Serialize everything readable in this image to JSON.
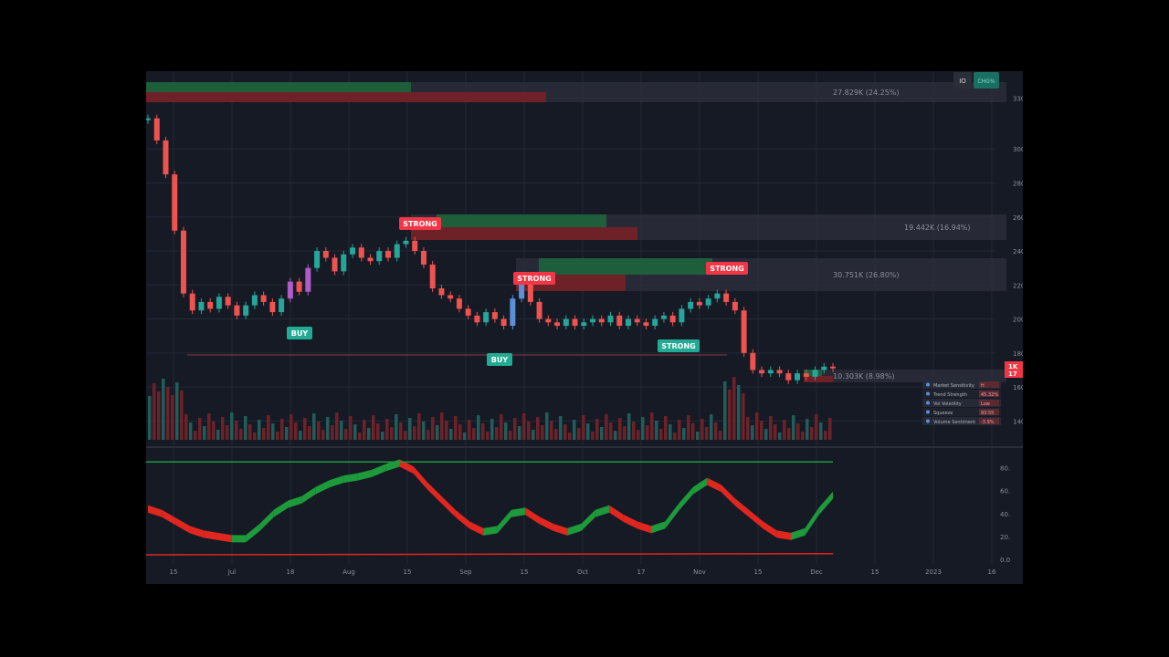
{
  "toolbar": {
    "interval_label": "IO",
    "status_label": "CHG%"
  },
  "price_axis_labels": [
    "330",
    "300",
    "280",
    "260",
    "240",
    "220",
    "200",
    "180",
    "160",
    "140"
  ],
  "last_price_labels": [
    "1K",
    "17"
  ],
  "osc_axis_labels": [
    "80.",
    "60.",
    "40.",
    "20.",
    "0.0"
  ],
  "colors": {
    "up": "#22ab94",
    "down": "#f23645",
    "bg": "#161a25",
    "grid": "#232838",
    "green_candle": "#26a69a",
    "red_candle": "#ef5350",
    "blue_candle": "#5b8fd9",
    "purple_candle": "#b05cc8"
  },
  "volume_profile": [
    {
      "label": "27.829K (24.25%)"
    },
    {
      "label": "19.442K (16.94%)"
    },
    {
      "label": "30.751K (26.80%)"
    },
    {
      "label": "10.303K (8.98%)"
    }
  ],
  "signals": [
    {
      "label": "BUY",
      "color": "#22ab94"
    },
    {
      "label": "STRONG",
      "color": "#f23645"
    },
    {
      "label": "BUY",
      "color": "#22ab94"
    },
    {
      "label": "STRONG",
      "color": "#f23645"
    },
    {
      "label": "STRONG",
      "color": "#22ab94"
    },
    {
      "label": "STRONG",
      "color": "#f23645"
    }
  ],
  "dashboard": [
    {
      "label": "Market Sensitivity",
      "value": "H",
      "icon": "gauge-icon"
    },
    {
      "label": "Trend Strength",
      "value": "45.32%",
      "icon": "trend-icon"
    },
    {
      "label": "Vol Volatility",
      "value": "Low",
      "icon": "volatility-icon"
    },
    {
      "label": "Squeeze",
      "value": "93.55",
      "icon": "squeeze-icon"
    },
    {
      "label": "Volume Sentiment",
      "value": "-3.9%",
      "icon": "volume-icon"
    }
  ],
  "chart_data": {
    "type": "line",
    "x_tick_labels": [
      "15",
      "Jul",
      "18",
      "Aug",
      "15",
      "Sep",
      "15",
      "Oct",
      "17",
      "Nov",
      "15",
      "Dec",
      "15",
      "2023",
      "16"
    ],
    "price": [
      318,
      305,
      285,
      252,
      215,
      205,
      210,
      206,
      213,
      208,
      202,
      208,
      214,
      210,
      204,
      212,
      222,
      216,
      230,
      240,
      236,
      228,
      238,
      242,
      236,
      234,
      240,
      236,
      244,
      246,
      240,
      232,
      218,
      214,
      212,
      206,
      202,
      198,
      204,
      200,
      196,
      212,
      224,
      210,
      200,
      198,
      196,
      200,
      196,
      198,
      200,
      198,
      202,
      196,
      200,
      198,
      196,
      200,
      202,
      198,
      206,
      210,
      208,
      212,
      215,
      210,
      205,
      180,
      170,
      168,
      170,
      168,
      164,
      168,
      166,
      170,
      172,
      171
    ],
    "ylim": [
      130,
      335
    ],
    "oscillator": [
      44,
      40,
      33,
      26,
      22,
      20,
      18,
      18,
      28,
      40,
      48,
      52,
      60,
      66,
      70,
      72,
      75,
      80,
      84,
      78,
      64,
      52,
      40,
      30,
      24,
      26,
      40,
      42,
      34,
      28,
      24,
      28,
      40,
      44,
      36,
      30,
      26,
      30,
      46,
      60,
      68,
      62,
      50,
      40,
      30,
      22,
      20,
      24,
      42,
      56
    ],
    "oscillator_ylim": [
      0,
      90
    ]
  }
}
